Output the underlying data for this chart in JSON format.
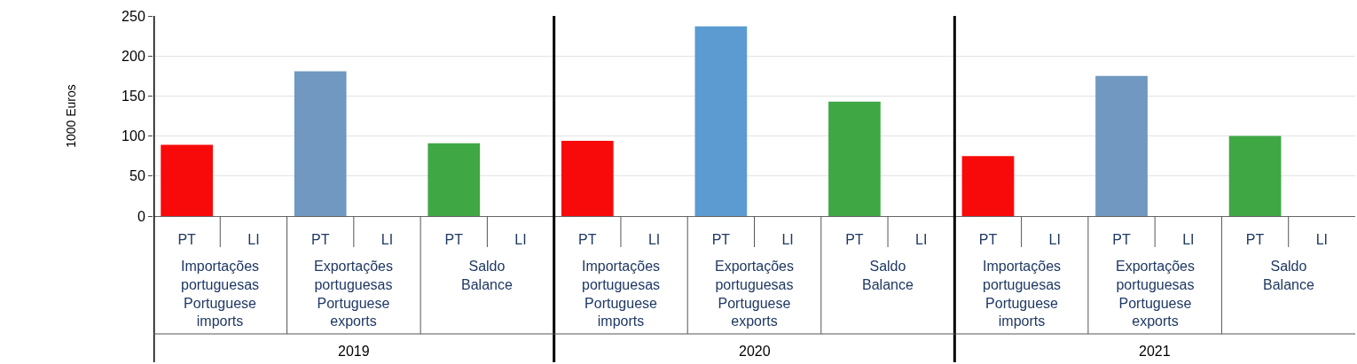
{
  "chart_data": {
    "type": "bar",
    "ylabel": "1000 Euros",
    "categories": [
      "PT",
      "LI",
      "PT",
      "LI",
      "PT",
      "LI",
      "PT",
      "LI",
      "PT",
      "LI",
      "PT",
      "LI",
      "PT",
      "LI",
      "PT",
      "LI",
      "PT",
      "LI"
    ],
    "values": [
      89,
      null,
      181,
      null,
      91,
      null,
      94,
      null,
      237,
      null,
      143,
      null,
      75,
      null,
      175,
      null,
      100,
      null
    ],
    "colors": [
      "#f80a0a",
      "#ffffff",
      "#7098c0",
      "#ffffff",
      "#3fa845",
      "#ffffff",
      "#f80a0a",
      "#ffffff",
      "#5b9bd1",
      "#ffffff",
      "#3fa845",
      "#ffffff",
      "#f80a0a",
      "#ffffff",
      "#7098c0",
      "#ffffff",
      "#3fa845",
      "#ffffff"
    ],
    "ylim": [
      0,
      250
    ],
    "yticks": [
      0,
      50,
      100,
      150,
      200,
      250
    ],
    "grid": "y",
    "legend": false,
    "annotations": [
      "Importações\nportuguesas\nPortuguese\nimports",
      "Exportações\nportuguesas\nPortuguese\nexports",
      "Saldo\nBalance",
      "Importações\nportuguesas\nPortuguese\nimports",
      "Exportações\nportuguesas\nPortuguese\nexports",
      "Saldo\nBalance",
      "Importações\nportuguesas\nPortuguese\nimports",
      "Exportações\nportuguesas\nPortuguese\nexports",
      "Saldo\nBalance",
      "2019",
      "2020",
      "2021"
    ]
  }
}
